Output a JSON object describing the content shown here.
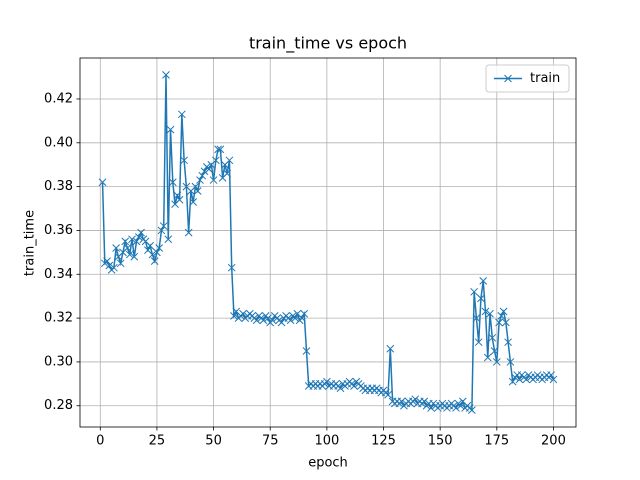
{
  "chart_data": {
    "type": "line",
    "title": "train_time vs epoch",
    "xlabel": "epoch",
    "ylabel": "train_time",
    "x": [
      1,
      2,
      3,
      4,
      5,
      6,
      7,
      8,
      9,
      10,
      11,
      12,
      13,
      14,
      15,
      16,
      17,
      18,
      19,
      20,
      21,
      22,
      23,
      24,
      25,
      26,
      27,
      28,
      29,
      30,
      31,
      32,
      33,
      34,
      35,
      36,
      37,
      38,
      39,
      40,
      41,
      42,
      43,
      44,
      45,
      46,
      47,
      48,
      49,
      50,
      51,
      52,
      53,
      54,
      55,
      56,
      57,
      58,
      59,
      60,
      61,
      62,
      63,
      64,
      65,
      66,
      67,
      68,
      69,
      70,
      71,
      72,
      73,
      74,
      75,
      76,
      77,
      78,
      79,
      80,
      81,
      82,
      83,
      84,
      85,
      86,
      87,
      88,
      89,
      90,
      91,
      92,
      93,
      94,
      95,
      96,
      97,
      98,
      99,
      100,
      101,
      102,
      103,
      104,
      105,
      106,
      107,
      108,
      109,
      110,
      111,
      112,
      113,
      114,
      115,
      116,
      117,
      118,
      119,
      120,
      121,
      122,
      123,
      124,
      125,
      126,
      127,
      128,
      129,
      130,
      131,
      132,
      133,
      134,
      135,
      136,
      137,
      138,
      139,
      140,
      141,
      142,
      143,
      144,
      145,
      146,
      147,
      148,
      149,
      150,
      151,
      152,
      153,
      154,
      155,
      156,
      157,
      158,
      159,
      160,
      161,
      162,
      163,
      164,
      165,
      166,
      167,
      168,
      169,
      170,
      171,
      172,
      173,
      174,
      175,
      176,
      177,
      178,
      179,
      180,
      181,
      182,
      183,
      184,
      185,
      186,
      187,
      188,
      189,
      190,
      191,
      192,
      193,
      194,
      195,
      196,
      197,
      198,
      199,
      200
    ],
    "series": [
      {
        "name": "train",
        "color": "#1f77b4",
        "marker": "x",
        "values": [
          0.382,
          0.345,
          0.346,
          0.344,
          0.342,
          0.343,
          0.352,
          0.348,
          0.345,
          0.35,
          0.355,
          0.352,
          0.349,
          0.356,
          0.348,
          0.355,
          0.357,
          0.359,
          0.356,
          0.355,
          0.351,
          0.353,
          0.349,
          0.346,
          0.35,
          0.352,
          0.36,
          0.362,
          0.431,
          0.356,
          0.406,
          0.382,
          0.372,
          0.376,
          0.374,
          0.413,
          0.392,
          0.38,
          0.359,
          0.378,
          0.373,
          0.38,
          0.378,
          0.383,
          0.385,
          0.387,
          0.389,
          0.388,
          0.39,
          0.383,
          0.392,
          0.397,
          0.397,
          0.384,
          0.39,
          0.386,
          0.392,
          0.343,
          0.321,
          0.323,
          0.32,
          0.321,
          0.322,
          0.32,
          0.321,
          0.322,
          0.321,
          0.32,
          0.319,
          0.321,
          0.32,
          0.319,
          0.321,
          0.32,
          0.318,
          0.319,
          0.321,
          0.32,
          0.319,
          0.318,
          0.32,
          0.321,
          0.32,
          0.319,
          0.321,
          0.32,
          0.322,
          0.319,
          0.32,
          0.322,
          0.305,
          0.289,
          0.29,
          0.289,
          0.29,
          0.289,
          0.29,
          0.289,
          0.29,
          0.291,
          0.289,
          0.29,
          0.289,
          0.29,
          0.289,
          0.288,
          0.29,
          0.289,
          0.29,
          0.291,
          0.29,
          0.289,
          0.291,
          0.29,
          0.289,
          0.288,
          0.287,
          0.288,
          0.287,
          0.288,
          0.287,
          0.288,
          0.287,
          0.286,
          0.287,
          0.286,
          0.285,
          0.306,
          0.282,
          0.281,
          0.282,
          0.281,
          0.282,
          0.28,
          0.281,
          0.282,
          0.281,
          0.282,
          0.283,
          0.281,
          0.282,
          0.281,
          0.282,
          0.28,
          0.281,
          0.279,
          0.281,
          0.28,
          0.279,
          0.28,
          0.281,
          0.28,
          0.279,
          0.28,
          0.281,
          0.28,
          0.279,
          0.281,
          0.28,
          0.282,
          0.279,
          0.28,
          0.279,
          0.278,
          0.332,
          0.32,
          0.309,
          0.329,
          0.337,
          0.323,
          0.302,
          0.322,
          0.311,
          0.305,
          0.3,
          0.318,
          0.321,
          0.323,
          0.318,
          0.309,
          0.3,
          0.291,
          0.293,
          0.294,
          0.292,
          0.294,
          0.293,
          0.292,
          0.294,
          0.293,
          0.292,
          0.293,
          0.294,
          0.293,
          0.292,
          0.293,
          0.294,
          0.293,
          0.294,
          0.292
        ]
      }
    ],
    "xlim": [
      -8.95,
      209.95
    ],
    "xticks": [
      0,
      25,
      50,
      75,
      100,
      125,
      150,
      175,
      200
    ],
    "ylim": [
      0.2703,
      0.4387
    ],
    "yticks": [
      0.28,
      {
        "value": 0.3,
        "label": "0.30"
      },
      0.32,
      0.34,
      0.36,
      0.38,
      {
        "value": 0.4,
        "label": "0.40"
      },
      0.42
    ],
    "grid": true,
    "legend": "upper right"
  }
}
